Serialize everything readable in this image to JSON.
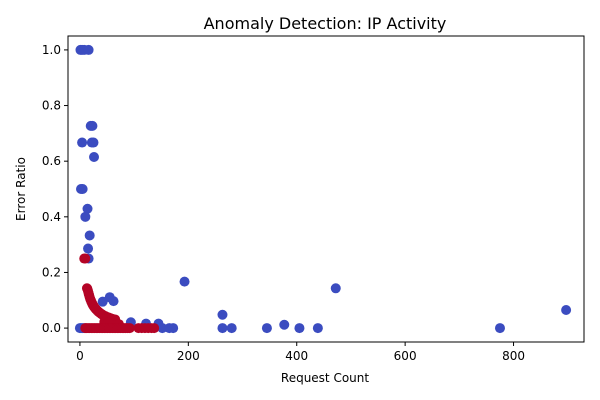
{
  "chart_data": {
    "type": "scatter",
    "title": "Anomaly Detection: IP Activity",
    "xlabel": "Request Count",
    "ylabel": "Error Ratio",
    "xlim": [
      -22,
      930
    ],
    "ylim": [
      -0.05,
      1.05
    ],
    "xticks": [
      0,
      200,
      400,
      600,
      800
    ],
    "yticks": [
      0.0,
      0.2,
      0.4,
      0.6,
      0.8,
      1.0
    ],
    "xtick_labels": [
      "0",
      "200",
      "400",
      "600",
      "800"
    ],
    "ytick_labels": [
      "0.0",
      "0.2",
      "0.4",
      "0.6",
      "0.8",
      "1.0"
    ],
    "grid": false,
    "legend": "none",
    "colors": {
      "normal": "#3b4cc0",
      "anomaly": "#b40426"
    },
    "series": [
      {
        "color_key": "normal",
        "points": [
          [
            1,
            1.0
          ],
          [
            4,
            1.0
          ],
          [
            8,
            1.0
          ],
          [
            16,
            1.0
          ],
          [
            20,
            0.727
          ],
          [
            23,
            0.727
          ],
          [
            4,
            0.667
          ],
          [
            22,
            0.667
          ],
          [
            25,
            0.667
          ],
          [
            26,
            0.615
          ],
          [
            2,
            0.5
          ],
          [
            5,
            0.5
          ],
          [
            14,
            0.429
          ],
          [
            10,
            0.4
          ],
          [
            18,
            0.333
          ],
          [
            15,
            0.286
          ],
          [
            16,
            0.25
          ],
          [
            193,
            0.167
          ],
          [
            472,
            0.143
          ],
          [
            55,
            0.111
          ],
          [
            42,
            0.095
          ],
          [
            62,
            0.097
          ],
          [
            897,
            0.065
          ],
          [
            263,
            0.048
          ],
          [
            94,
            0.021
          ],
          [
            122,
            0.016
          ],
          [
            145,
            0.016
          ],
          [
            377,
            0.012
          ],
          [
            0,
            0.0
          ],
          [
            2,
            0.0
          ],
          [
            5,
            0.0
          ],
          [
            8,
            0.0
          ],
          [
            152,
            0.0
          ],
          [
            165,
            0.0
          ],
          [
            172,
            0.0
          ],
          [
            263,
            0.0
          ],
          [
            280,
            0.0
          ],
          [
            345,
            0.0
          ],
          [
            405,
            0.0
          ],
          [
            439,
            0.0
          ],
          [
            775,
            0.0
          ]
        ]
      },
      {
        "color_key": "anomaly",
        "points": [
          [
            8,
            0.25
          ],
          [
            10,
            0.25
          ],
          [
            13,
            0.143
          ],
          [
            14,
            0.14
          ],
          [
            15,
            0.133
          ],
          [
            16,
            0.125
          ],
          [
            17,
            0.118
          ],
          [
            18,
            0.111
          ],
          [
            19,
            0.105
          ],
          [
            20,
            0.1
          ],
          [
            21,
            0.095
          ],
          [
            22,
            0.091
          ],
          [
            23,
            0.087
          ],
          [
            24,
            0.083
          ],
          [
            25,
            0.08
          ],
          [
            26,
            0.077
          ],
          [
            27,
            0.074
          ],
          [
            29,
            0.069
          ],
          [
            30,
            0.067
          ],
          [
            32,
            0.063
          ],
          [
            34,
            0.059
          ],
          [
            36,
            0.056
          ],
          [
            38,
            0.053
          ],
          [
            40,
            0.05
          ],
          [
            42,
            0.048
          ],
          [
            44,
            0.045
          ],
          [
            47,
            0.043
          ],
          [
            50,
            0.04
          ],
          [
            53,
            0.038
          ],
          [
            56,
            0.036
          ],
          [
            60,
            0.033
          ],
          [
            65,
            0.031
          ],
          [
            48,
            0.02
          ],
          [
            58,
            0.02
          ],
          [
            62,
            0.017
          ],
          [
            68,
            0.015
          ],
          [
            72,
            0.014
          ],
          [
            45,
            0.022
          ],
          [
            52,
            0.019
          ],
          [
            10,
            0.0
          ],
          [
            12,
            0.0
          ],
          [
            15,
            0.0
          ],
          [
            18,
            0.0
          ],
          [
            21,
            0.0
          ],
          [
            24,
            0.0
          ],
          [
            27,
            0.0
          ],
          [
            30,
            0.0
          ],
          [
            33,
            0.0
          ],
          [
            36,
            0.0
          ],
          [
            39,
            0.0
          ],
          [
            42,
            0.0
          ],
          [
            45,
            0.0
          ],
          [
            48,
            0.0
          ],
          [
            51,
            0.0
          ],
          [
            54,
            0.0
          ],
          [
            57,
            0.0
          ],
          [
            60,
            0.0
          ],
          [
            63,
            0.0
          ],
          [
            66,
            0.0
          ],
          [
            69,
            0.0
          ],
          [
            72,
            0.0
          ],
          [
            75,
            0.0
          ],
          [
            78,
            0.0
          ],
          [
            81,
            0.0
          ],
          [
            84,
            0.0
          ],
          [
            88,
            0.0
          ],
          [
            92,
            0.0
          ],
          [
            108,
            0.0
          ],
          [
            114,
            0.0
          ],
          [
            120,
            0.0
          ],
          [
            126,
            0.0
          ],
          [
            132,
            0.0
          ],
          [
            137,
            0.0
          ]
        ]
      }
    ]
  }
}
